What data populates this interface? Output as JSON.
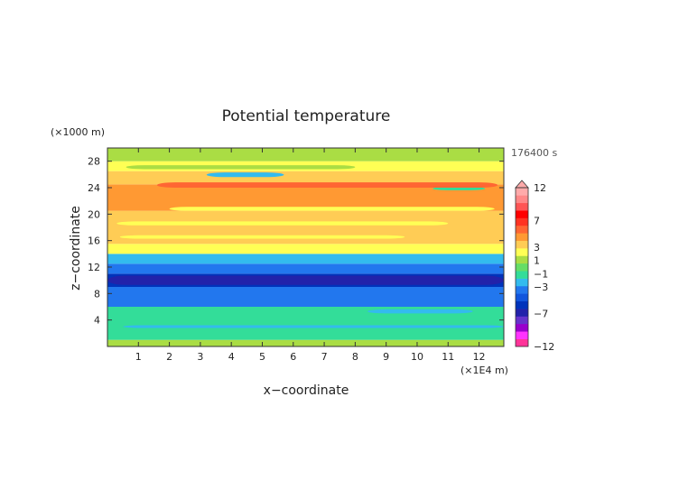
{
  "chart_data": {
    "type": "heatmap",
    "title": "Potential temperature",
    "xlabel": "x−coordinate",
    "ylabel": "z−coordinate",
    "x_unit": "(×1E4 m)",
    "y_unit": "(×1000 m)",
    "time_label": "176400 s",
    "xlim": [
      0,
      12.8
    ],
    "ylim": [
      0,
      30
    ],
    "x_ticks": [
      "1",
      "2",
      "3",
      "4",
      "5",
      "6",
      "7",
      "8",
      "9",
      "10",
      "11",
      "12"
    ],
    "y_ticks": [
      "4",
      "8",
      "12",
      "16",
      "20",
      "24",
      "28"
    ],
    "colorbar": {
      "levels": [
        {
          "level": -12,
          "color": "#ff3399"
        },
        {
          "level": -11,
          "color": "#ff33ff"
        },
        {
          "level": -9,
          "color": "#9900cc"
        },
        {
          "level": -8,
          "color": "#6633cc"
        },
        {
          "level": -7,
          "color": "#2222aa"
        },
        {
          "level": -6,
          "color": "#0033bb"
        },
        {
          "level": -5,
          "color": "#1155dd"
        },
        {
          "level": -4,
          "color": "#2277ee"
        },
        {
          "level": -3,
          "color": "#33bbee"
        },
        {
          "level": -2,
          "color": "#33dd99"
        },
        {
          "level": -1,
          "color": "#66dd66"
        },
        {
          "level": 0,
          "color": "#aadd44"
        },
        {
          "level": 1,
          "color": "#ffff55"
        },
        {
          "level": 2,
          "color": "#ffcc55"
        },
        {
          "level": 3,
          "color": "#ff9933"
        },
        {
          "level": 4,
          "color": "#ff6633"
        },
        {
          "level": 5,
          "color": "#ff3322"
        },
        {
          "level": 7,
          "color": "#ff0000"
        },
        {
          "level": 9,
          "color": "#ff5555"
        },
        {
          "level": 10,
          "color": "#ff8888"
        },
        {
          "level": 12,
          "color": "#ffaaaa"
        }
      ],
      "labels": [
        "12",
        "7",
        "3",
        "1",
        "−1",
        "−3",
        "−7",
        "−12"
      ]
    },
    "bands": [
      {
        "z0": 0,
        "z1": 1,
        "value": 0
      },
      {
        "z0": 1,
        "z1": 6,
        "value": -2
      },
      {
        "z0": 6,
        "z1": 9,
        "value": -4
      },
      {
        "z0": 9,
        "z1": 11,
        "value": -6
      },
      {
        "z0": 11,
        "z1": 12.5,
        "value": -4
      },
      {
        "z0": 12.5,
        "z1": 14,
        "value": -3
      },
      {
        "z0": 14,
        "z1": 15.5,
        "value": 1
      },
      {
        "z0": 15.5,
        "z1": 20.5,
        "value": 2
      },
      {
        "z0": 20.5,
        "z1": 24.5,
        "value": 3
      },
      {
        "z0": 24.5,
        "z1": 26.5,
        "value": 2
      },
      {
        "z0": 26.5,
        "z1": 28,
        "value": 1
      },
      {
        "z0": 28,
        "z1": 30,
        "value": 0
      }
    ],
    "features": [
      {
        "x0": 0,
        "x1": 12.8,
        "z0": 9.3,
        "z1": 10.7,
        "value": -7
      },
      {
        "x0": 0.5,
        "x1": 12.8,
        "z0": 2.8,
        "z1": 3.2,
        "value": -3
      },
      {
        "x0": 3.2,
        "x1": 5.7,
        "z0": 25.6,
        "z1": 26.3,
        "value": -3
      },
      {
        "x0": 10.5,
        "x1": 12.2,
        "z0": 23.6,
        "z1": 24.1,
        "value": -2
      },
      {
        "x0": 1.6,
        "x1": 12.6,
        "z0": 24.0,
        "z1": 24.8,
        "value": 4
      },
      {
        "x0": 0.3,
        "x1": 11.0,
        "z0": 18.3,
        "z1": 18.9,
        "value": 1
      },
      {
        "x0": 2.0,
        "x1": 12.5,
        "z0": 20.5,
        "z1": 21.1,
        "value": 1
      },
      {
        "x0": 0.4,
        "x1": 9.6,
        "z0": 16.3,
        "z1": 16.8,
        "value": 1
      },
      {
        "x0": 0.6,
        "x1": 8.0,
        "z0": 26.8,
        "z1": 27.4,
        "value": 0
      },
      {
        "x0": 8.4,
        "x1": 11.8,
        "z0": 5.0,
        "z1": 5.6,
        "value": -3
      }
    ]
  }
}
